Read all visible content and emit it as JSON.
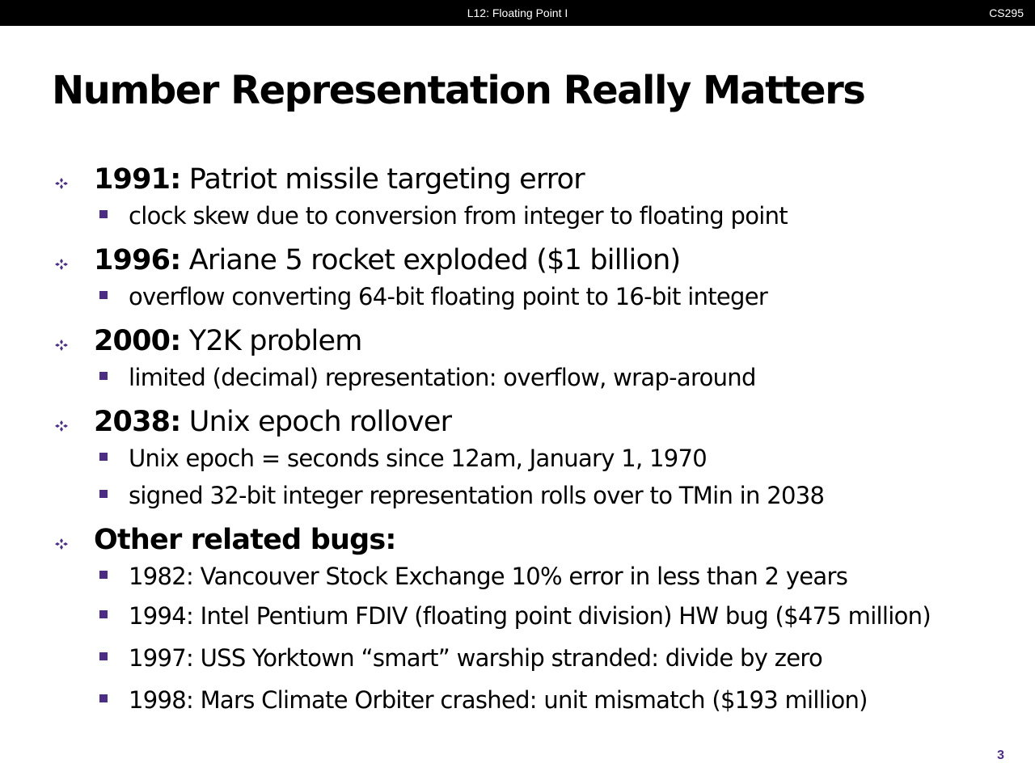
{
  "header": {
    "lecture": "L12:  Floating Point I",
    "course": "CS295"
  },
  "title": "Number Representation Really Matters",
  "items": [
    {
      "year": "1991:",
      "text": " Patriot missile targeting error",
      "subs": [
        "clock skew due to conversion from integer to floating point"
      ]
    },
    {
      "year": "1996:",
      "text": " Ariane 5 rocket exploded  ($1 billion)",
      "subs": [
        "overflow converting 64-bit floating point to 16-bit integer"
      ]
    },
    {
      "year": "2000:",
      "text": " Y2K problem",
      "subs": [
        "limited (decimal) representation: overflow, wrap-around"
      ]
    },
    {
      "year": "2038:",
      "text": " Unix epoch rollover",
      "subs": [
        "Unix epoch = seconds since 12am, January 1, 1970",
        "signed 32-bit integer representation rolls over to TMin in 2038"
      ]
    },
    {
      "year": "Other related bugs:",
      "text": "",
      "subs": [
        "1982: Vancouver Stock Exchange 10% error in less than 2 years",
        "1994: Intel Pentium FDIV (floating point division) HW bug ($475 million)",
        "1997: USS Yorktown “smart” warship stranded: divide by zero",
        "1998: Mars Climate Orbiter crashed: unit mismatch ($193 million)"
      ]
    }
  ],
  "page_number": "3",
  "colors": {
    "accent": "#4b2e83",
    "header_bg": "#000000"
  }
}
